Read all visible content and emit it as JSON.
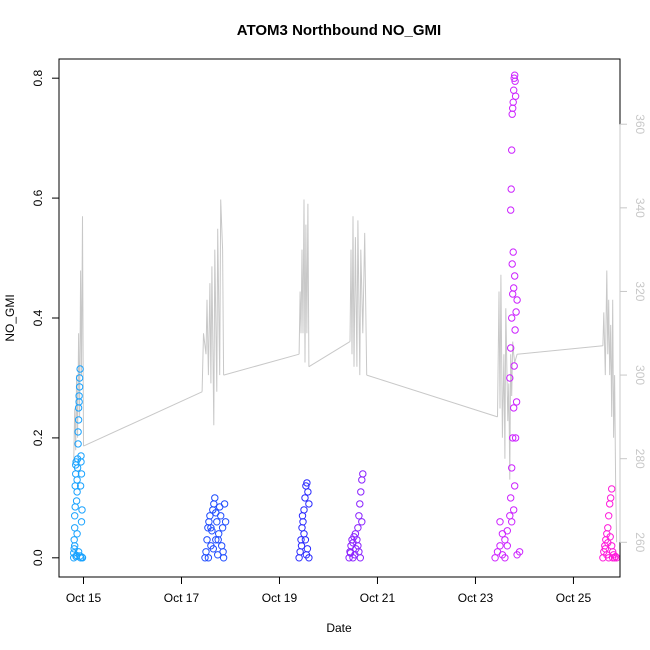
{
  "chart_data": {
    "type": "scatter",
    "title": "ATOM3 Northbound NO_GMI",
    "xlabel": "Date",
    "ylabel": "NO_GMI",
    "x_unit": "date (October)",
    "xlim": [
      14.5,
      25.95
    ],
    "ylim": [
      -0.032,
      0.832
    ],
    "y2lim": [
      251.7,
      375.6
    ],
    "x_ticks": [
      {
        "value": 15,
        "label": "Oct 15"
      },
      {
        "value": 17,
        "label": "Oct 17"
      },
      {
        "value": 19,
        "label": "Oct 19"
      },
      {
        "value": 21,
        "label": "Oct 21"
      },
      {
        "value": 23,
        "label": "Oct 23"
      },
      {
        "value": 25,
        "label": "Oct 25"
      }
    ],
    "y_ticks": [
      "0.0",
      "0.2",
      "0.4",
      "0.6",
      "0.8"
    ],
    "y2_ticks": [
      "260",
      "280",
      "300",
      "320",
      "340",
      "360"
    ],
    "y2_color": "#c8c8c8",
    "line_color": "#c8c8c8",
    "marker": "open-circle",
    "series": [
      {
        "color": "#1aa3ff",
        "points": [
          [
            14.8,
            0.0
          ],
          [
            14.8,
            0.008
          ],
          [
            14.81,
            0.015
          ],
          [
            14.81,
            0.03
          ],
          [
            14.82,
            0.05
          ],
          [
            14.82,
            0.07
          ],
          [
            14.83,
            0.085
          ],
          [
            14.83,
            0.12
          ],
          [
            14.84,
            0.14
          ],
          [
            14.84,
            0.155
          ],
          [
            14.85,
            0.16
          ],
          [
            14.85,
            0.002
          ],
          [
            14.86,
            0.004
          ],
          [
            14.86,
            0.095
          ],
          [
            14.87,
            0.11
          ],
          [
            14.87,
            0.13
          ],
          [
            14.88,
            0.15
          ],
          [
            14.88,
            0.165
          ],
          [
            14.89,
            0.19
          ],
          [
            14.89,
            0.21
          ],
          [
            14.9,
            0.23
          ],
          [
            14.9,
            0.25
          ],
          [
            14.91,
            0.26
          ],
          [
            14.91,
            0.27
          ],
          [
            14.92,
            0.285
          ],
          [
            14.92,
            0.3
          ],
          [
            14.93,
            0.315
          ],
          [
            14.93,
            0.003
          ],
          [
            14.94,
            0.0
          ],
          [
            14.94,
            0.12
          ],
          [
            14.95,
            0.16
          ],
          [
            14.95,
            0.17
          ],
          [
            14.96,
            0.14
          ],
          [
            14.96,
            0.06
          ],
          [
            14.97,
            0.08
          ],
          [
            14.97,
            0.001
          ],
          [
            14.98,
            0.0
          ],
          [
            14.82,
            0.02
          ],
          [
            14.87,
            0.04
          ],
          [
            14.9,
            0.01
          ]
        ]
      },
      {
        "color": "#1e4cff",
        "points": [
          [
            17.48,
            0.0
          ],
          [
            17.5,
            0.01
          ],
          [
            17.52,
            0.03
          ],
          [
            17.54,
            0.05
          ],
          [
            17.56,
            0.06
          ],
          [
            17.58,
            0.07
          ],
          [
            17.6,
            0.02
          ],
          [
            17.62,
            0.045
          ],
          [
            17.64,
            0.08
          ],
          [
            17.66,
            0.09
          ],
          [
            17.68,
            0.1
          ],
          [
            17.7,
            0.03
          ],
          [
            17.72,
            0.06
          ],
          [
            17.74,
            0.005
          ],
          [
            17.76,
            0.04
          ],
          [
            17.78,
            0.085
          ],
          [
            17.8,
            0.07
          ],
          [
            17.82,
            0.02
          ],
          [
            17.84,
            0.05
          ],
          [
            17.86,
            0.0
          ],
          [
            17.88,
            0.09
          ],
          [
            17.9,
            0.06
          ],
          [
            17.55,
            0.0
          ],
          [
            17.65,
            0.015
          ],
          [
            17.75,
            0.03
          ],
          [
            17.85,
            0.01
          ],
          [
            17.7,
            0.075
          ],
          [
            17.6,
            0.05
          ]
        ]
      },
      {
        "color": "#2a2aff",
        "points": [
          [
            19.4,
            0.0
          ],
          [
            19.42,
            0.01
          ],
          [
            19.44,
            0.03
          ],
          [
            19.46,
            0.05
          ],
          [
            19.48,
            0.06
          ],
          [
            19.5,
            0.08
          ],
          [
            19.52,
            0.1
          ],
          [
            19.54,
            0.12
          ],
          [
            19.56,
            0.125
          ],
          [
            19.58,
            0.11
          ],
          [
            19.6,
            0.09
          ],
          [
            19.45,
            0.02
          ],
          [
            19.5,
            0.04
          ],
          [
            19.55,
            0.005
          ],
          [
            19.6,
            0.0
          ],
          [
            19.47,
            0.07
          ],
          [
            19.53,
            0.03
          ],
          [
            19.57,
            0.015
          ]
        ]
      },
      {
        "color": "#8a22ff",
        "points": [
          [
            20.42,
            0.0
          ],
          [
            20.44,
            0.01
          ],
          [
            20.46,
            0.02
          ],
          [
            20.48,
            0.03
          ],
          [
            20.5,
            0.025
          ],
          [
            20.52,
            0.035
          ],
          [
            20.54,
            0.005
          ],
          [
            20.56,
            0.015
          ],
          [
            20.58,
            0.03
          ],
          [
            20.6,
            0.05
          ],
          [
            20.62,
            0.07
          ],
          [
            20.64,
            0.09
          ],
          [
            20.66,
            0.11
          ],
          [
            20.68,
            0.13
          ],
          [
            20.7,
            0.14
          ],
          [
            20.65,
            0.0
          ],
          [
            20.55,
            0.04
          ],
          [
            20.45,
            0.008
          ],
          [
            20.6,
            0.02
          ],
          [
            20.68,
            0.06
          ],
          [
            20.5,
            0.0
          ],
          [
            20.62,
            0.01
          ]
        ]
      },
      {
        "color": "#cc22ff",
        "points": [
          [
            23.4,
            0.0
          ],
          [
            23.45,
            0.01
          ],
          [
            23.5,
            0.02
          ],
          [
            23.55,
            0.005
          ],
          [
            23.6,
            0.03
          ],
          [
            23.65,
            0.045
          ],
          [
            23.7,
            0.07
          ],
          [
            23.72,
            0.1
          ],
          [
            23.74,
            0.15
          ],
          [
            23.76,
            0.2
          ],
          [
            23.78,
            0.25
          ],
          [
            23.7,
            0.3
          ],
          [
            23.72,
            0.35
          ],
          [
            23.74,
            0.4
          ],
          [
            23.76,
            0.44
          ],
          [
            23.78,
            0.45
          ],
          [
            23.8,
            0.47
          ],
          [
            23.75,
            0.49
          ],
          [
            23.77,
            0.51
          ],
          [
            23.72,
            0.58
          ],
          [
            23.73,
            0.615
          ],
          [
            23.74,
            0.68
          ],
          [
            23.75,
            0.74
          ],
          [
            23.76,
            0.75
          ],
          [
            23.77,
            0.76
          ],
          [
            23.78,
            0.78
          ],
          [
            23.79,
            0.8
          ],
          [
            23.8,
            0.805
          ],
          [
            23.81,
            0.795
          ],
          [
            23.82,
            0.77
          ],
          [
            23.74,
            0.06
          ],
          [
            23.78,
            0.08
          ],
          [
            23.8,
            0.12
          ],
          [
            23.82,
            0.2
          ],
          [
            23.84,
            0.26
          ],
          [
            23.79,
            0.32
          ],
          [
            23.81,
            0.38
          ],
          [
            23.83,
            0.41
          ],
          [
            23.85,
            0.43
          ],
          [
            23.5,
            0.06
          ],
          [
            23.6,
            0.0
          ],
          [
            23.85,
            0.005
          ],
          [
            23.9,
            0.01
          ],
          [
            23.65,
            0.02
          ],
          [
            23.55,
            0.04
          ]
        ]
      },
      {
        "color": "#ff1adb",
        "points": [
          [
            25.6,
            0.0
          ],
          [
            25.62,
            0.01
          ],
          [
            25.64,
            0.02
          ],
          [
            25.66,
            0.03
          ],
          [
            25.68,
            0.04
          ],
          [
            25.7,
            0.05
          ],
          [
            25.72,
            0.07
          ],
          [
            25.74,
            0.09
          ],
          [
            25.76,
            0.1
          ],
          [
            25.78,
            0.115
          ],
          [
            25.8,
            0.0
          ],
          [
            25.82,
            0.005
          ],
          [
            25.84,
            0.0
          ],
          [
            25.86,
            0.002
          ],
          [
            25.88,
            0.0
          ],
          [
            25.65,
            0.015
          ],
          [
            25.7,
            0.025
          ],
          [
            25.75,
            0.035
          ],
          [
            25.78,
            0.02
          ],
          [
            25.8,
            0.01
          ],
          [
            25.72,
            0.0
          ],
          [
            25.68,
            0.005
          ]
        ]
      }
    ],
    "line_series": [
      {
        "segments": [
          [
            [
              14.8,
              279
            ],
            [
              14.82,
              292
            ],
            [
              14.84,
              282
            ],
            [
              14.86,
              300
            ],
            [
              14.88,
              285
            ],
            [
              14.9,
              310
            ],
            [
              14.92,
              290
            ],
            [
              14.94,
              325
            ],
            [
              14.96,
              300
            ],
            [
              14.98,
              338
            ],
            [
              15.0,
              283
            ]
          ],
          [
            [
              15.0,
              283
            ],
            [
              17.42,
              296
            ]
          ],
          [
            [
              17.42,
              296
            ],
            [
              17.45,
              310
            ],
            [
              17.5,
              305
            ],
            [
              17.52,
              318
            ],
            [
              17.55,
              300
            ],
            [
              17.58,
              322
            ],
            [
              17.6,
              298
            ],
            [
              17.62,
              326
            ],
            [
              17.66,
              288
            ],
            [
              17.68,
              330
            ],
            [
              17.72,
              296
            ],
            [
              17.74,
              335
            ],
            [
              17.78,
              300
            ],
            [
              17.8,
              342
            ],
            [
              17.84,
              330
            ],
            [
              17.86,
              300
            ]
          ],
          [
            [
              17.86,
              300
            ],
            [
              19.4,
              305
            ]
          ],
          [
            [
              19.4,
              305
            ],
            [
              19.42,
              320
            ],
            [
              19.44,
              310
            ],
            [
              19.46,
              330
            ],
            [
              19.48,
              310
            ],
            [
              19.5,
              342
            ],
            [
              19.52,
              303
            ],
            [
              19.54,
              336
            ],
            [
              19.56,
              310
            ],
            [
              19.58,
              341
            ],
            [
              19.6,
              302
            ]
          ],
          [
            [
              19.6,
              302
            ],
            [
              20.44,
              308
            ]
          ],
          [
            [
              20.44,
              308
            ],
            [
              20.46,
              330
            ],
            [
              20.48,
              305
            ],
            [
              20.5,
              338
            ],
            [
              20.52,
              302
            ],
            [
              20.55,
              333
            ],
            [
              20.58,
              302
            ],
            [
              20.6,
              337
            ],
            [
              20.64,
              300
            ],
            [
              20.66,
              330
            ],
            [
              20.7,
              310
            ],
            [
              20.74,
              334
            ],
            [
              20.78,
              300
            ]
          ],
          [
            [
              20.78,
              300
            ],
            [
              23.45,
              290
            ]
          ],
          [
            [
              23.45,
              290
            ],
            [
              23.48,
              320
            ],
            [
              23.5,
              292
            ],
            [
              23.52,
              324
            ],
            [
              23.55,
              285
            ],
            [
              23.58,
              305
            ],
            [
              23.6,
              280
            ],
            [
              23.62,
              316
            ],
            [
              23.66,
              289
            ],
            [
              23.68,
              298
            ],
            [
              23.7,
              275
            ],
            [
              23.72,
              305
            ],
            [
              23.74,
              295
            ],
            [
              23.76,
              308
            ],
            [
              23.78,
              305
            ],
            [
              23.8,
              303
            ],
            [
              23.85,
              305
            ]
          ],
          [
            [
              23.85,
              305
            ],
            [
              25.6,
              307
            ]
          ],
          [
            [
              25.6,
              307
            ],
            [
              25.62,
              315
            ],
            [
              25.65,
              300
            ],
            [
              25.68,
              325
            ],
            [
              25.7,
              305
            ],
            [
              25.72,
              318
            ],
            [
              25.74,
              300
            ],
            [
              25.76,
              312
            ],
            [
              25.78,
              290
            ],
            [
              25.8,
              318
            ],
            [
              25.82,
              285
            ],
            [
              25.84,
              300
            ],
            [
              25.86,
              275
            ],
            [
              25.88,
              260
            ]
          ]
        ]
      }
    ]
  }
}
